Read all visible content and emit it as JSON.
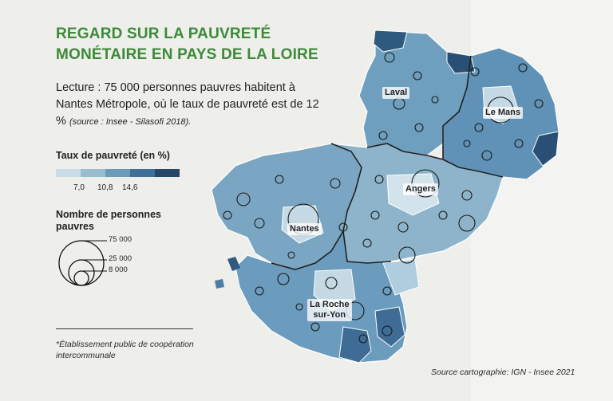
{
  "title": {
    "line1": "REGARD SUR LA PAUVRETÉ",
    "line2": "MONÉTAIRE EN PAYS DE LA LOIRE"
  },
  "lecture": {
    "text": "Lecture : 75 000 personnes pauvres habitent à Nantes Métropole, où le taux de pauvreté est de 12 %",
    "source": "(source : Insee - Silasofi 2018)."
  },
  "legend_rate": {
    "title": "Taux de pauvreté (en %)",
    "ticks": [
      "7,0",
      "10,8",
      "14,6"
    ],
    "colors": [
      "#c9dde6",
      "#98bdd0",
      "#6a9bbb",
      "#3f7099",
      "#26476a"
    ]
  },
  "legend_count": {
    "title": "Nombre de personnes pauvres",
    "values": [
      "75 000",
      "25 000",
      "8 000"
    ]
  },
  "footnote": "*Établissement public de coopération intercommunale",
  "source_carto": "Source cartographie: IGN - Insee 2021",
  "cities": {
    "laval": "Laval",
    "le_mans": "Le Mans",
    "angers": "Angers",
    "nantes": "Nantes",
    "la_roche": "La Roche\nsur-Yon"
  },
  "colors": {
    "title_green": "#3d8a3a",
    "map_border": "#1e1e1e"
  }
}
